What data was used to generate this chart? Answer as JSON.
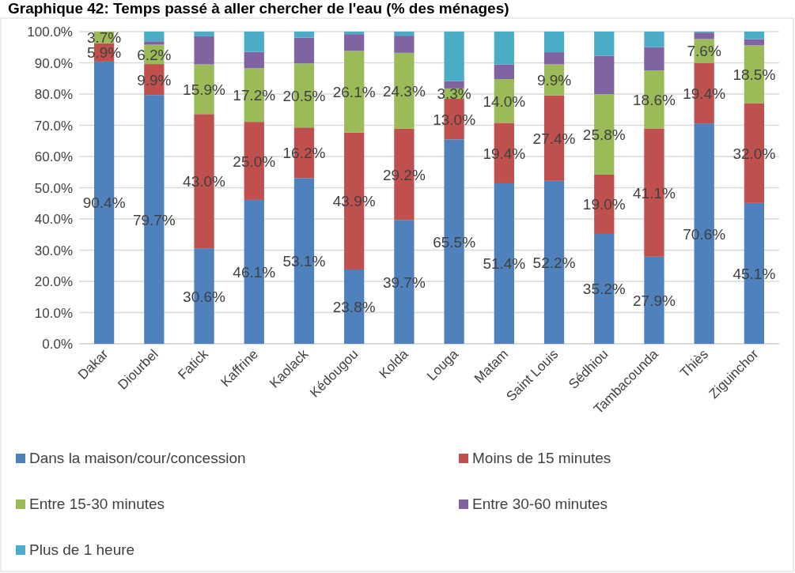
{
  "chart_data": {
    "type": "bar",
    "stacked": true,
    "title": "Graphique 42: Temps passé à aller chercher de l'eau (% des ménages)",
    "categories": [
      "Dakar",
      "Diourbel",
      "Fatick",
      "Kaffrine",
      "Kaolack",
      "Kédougou",
      "Kolda",
      "Louga",
      "Matam",
      "Saint Louis",
      "Sédhiou",
      "Tambacounda",
      "Thiès",
      "Ziguinchor"
    ],
    "series": [
      {
        "name": "Dans la maison/cour/concession",
        "color": "#4f81bd",
        "values": [
          90.4,
          79.7,
          30.6,
          46.1,
          53.1,
          23.8,
          39.7,
          65.5,
          51.4,
          52.2,
          35.2,
          27.9,
          70.6,
          45.1
        ],
        "value_labels": [
          "90.4%",
          "79.7%",
          "30.6%",
          "46.1%",
          "53.1%",
          "23.8%",
          "39.7%",
          "65.5%",
          "51.4%",
          "52.2%",
          "35.2%",
          "27.9%",
          "70.6%",
          "45.1%"
        ]
      },
      {
        "name": "Moins de 15 minutes",
        "color": "#c0504d",
        "values": [
          5.9,
          9.9,
          43.0,
          25.0,
          16.2,
          43.9,
          29.2,
          13.0,
          19.4,
          27.4,
          19.0,
          41.1,
          19.4,
          32.0
        ],
        "value_labels": [
          "5.9%",
          "9.9%",
          "43.0%",
          "25.0%",
          "16.2%",
          "43.9%",
          "29.2%",
          "13.0%",
          "19.4%",
          "27.4%",
          "19.0%",
          "41.1%",
          "19.4%",
          "32.0%"
        ]
      },
      {
        "name": "Entre 15-30 minutes",
        "color": "#9bbb59",
        "values": [
          3.7,
          6.2,
          15.9,
          17.2,
          20.5,
          26.1,
          24.3,
          3.3,
          14.0,
          9.9,
          25.8,
          18.6,
          7.6,
          18.5
        ],
        "value_labels": [
          "3.7%",
          "6.2%",
          "15.9%",
          "17.2%",
          "20.5%",
          "26.1%",
          "24.3%",
          "3.3%",
          "14.0%",
          "9.9%",
          "25.8%",
          "18.6%",
          "7.6%",
          "18.5%"
        ]
      },
      {
        "name": "Entre 30-60 minutes",
        "color": "#8064a2",
        "values": [
          0,
          1.1,
          9.0,
          5.2,
          8.3,
          5.4,
          5.5,
          2.4,
          4.7,
          3.9,
          12.3,
          7.4,
          2.1,
          2.0
        ]
      },
      {
        "name": "Plus de 1 heure",
        "color": "#4bacc6",
        "values": [
          0,
          3.1,
          1.5,
          6.5,
          1.9,
          0.8,
          1.3,
          15.8,
          10.5,
          6.6,
          7.7,
          5.0,
          0.3,
          2.4
        ]
      }
    ],
    "ylim": [
      0,
      100
    ],
    "yticks": [
      {
        "value": 0,
        "label": "0.0%"
      },
      {
        "value": 10,
        "label": "10.0%"
      },
      {
        "value": 20,
        "label": "20.0%"
      },
      {
        "value": 30,
        "label": "30.0%"
      },
      {
        "value": 40,
        "label": "40.0%"
      },
      {
        "value": 50,
        "label": "50.0%"
      },
      {
        "value": 60,
        "label": "60.0%"
      },
      {
        "value": 70,
        "label": "70.0%"
      },
      {
        "value": 80,
        "label": "80.0%"
      },
      {
        "value": 90,
        "label": "90.0%"
      },
      {
        "value": 100,
        "label": "100.0%"
      }
    ],
    "grid": "y",
    "legend": "bottom"
  }
}
